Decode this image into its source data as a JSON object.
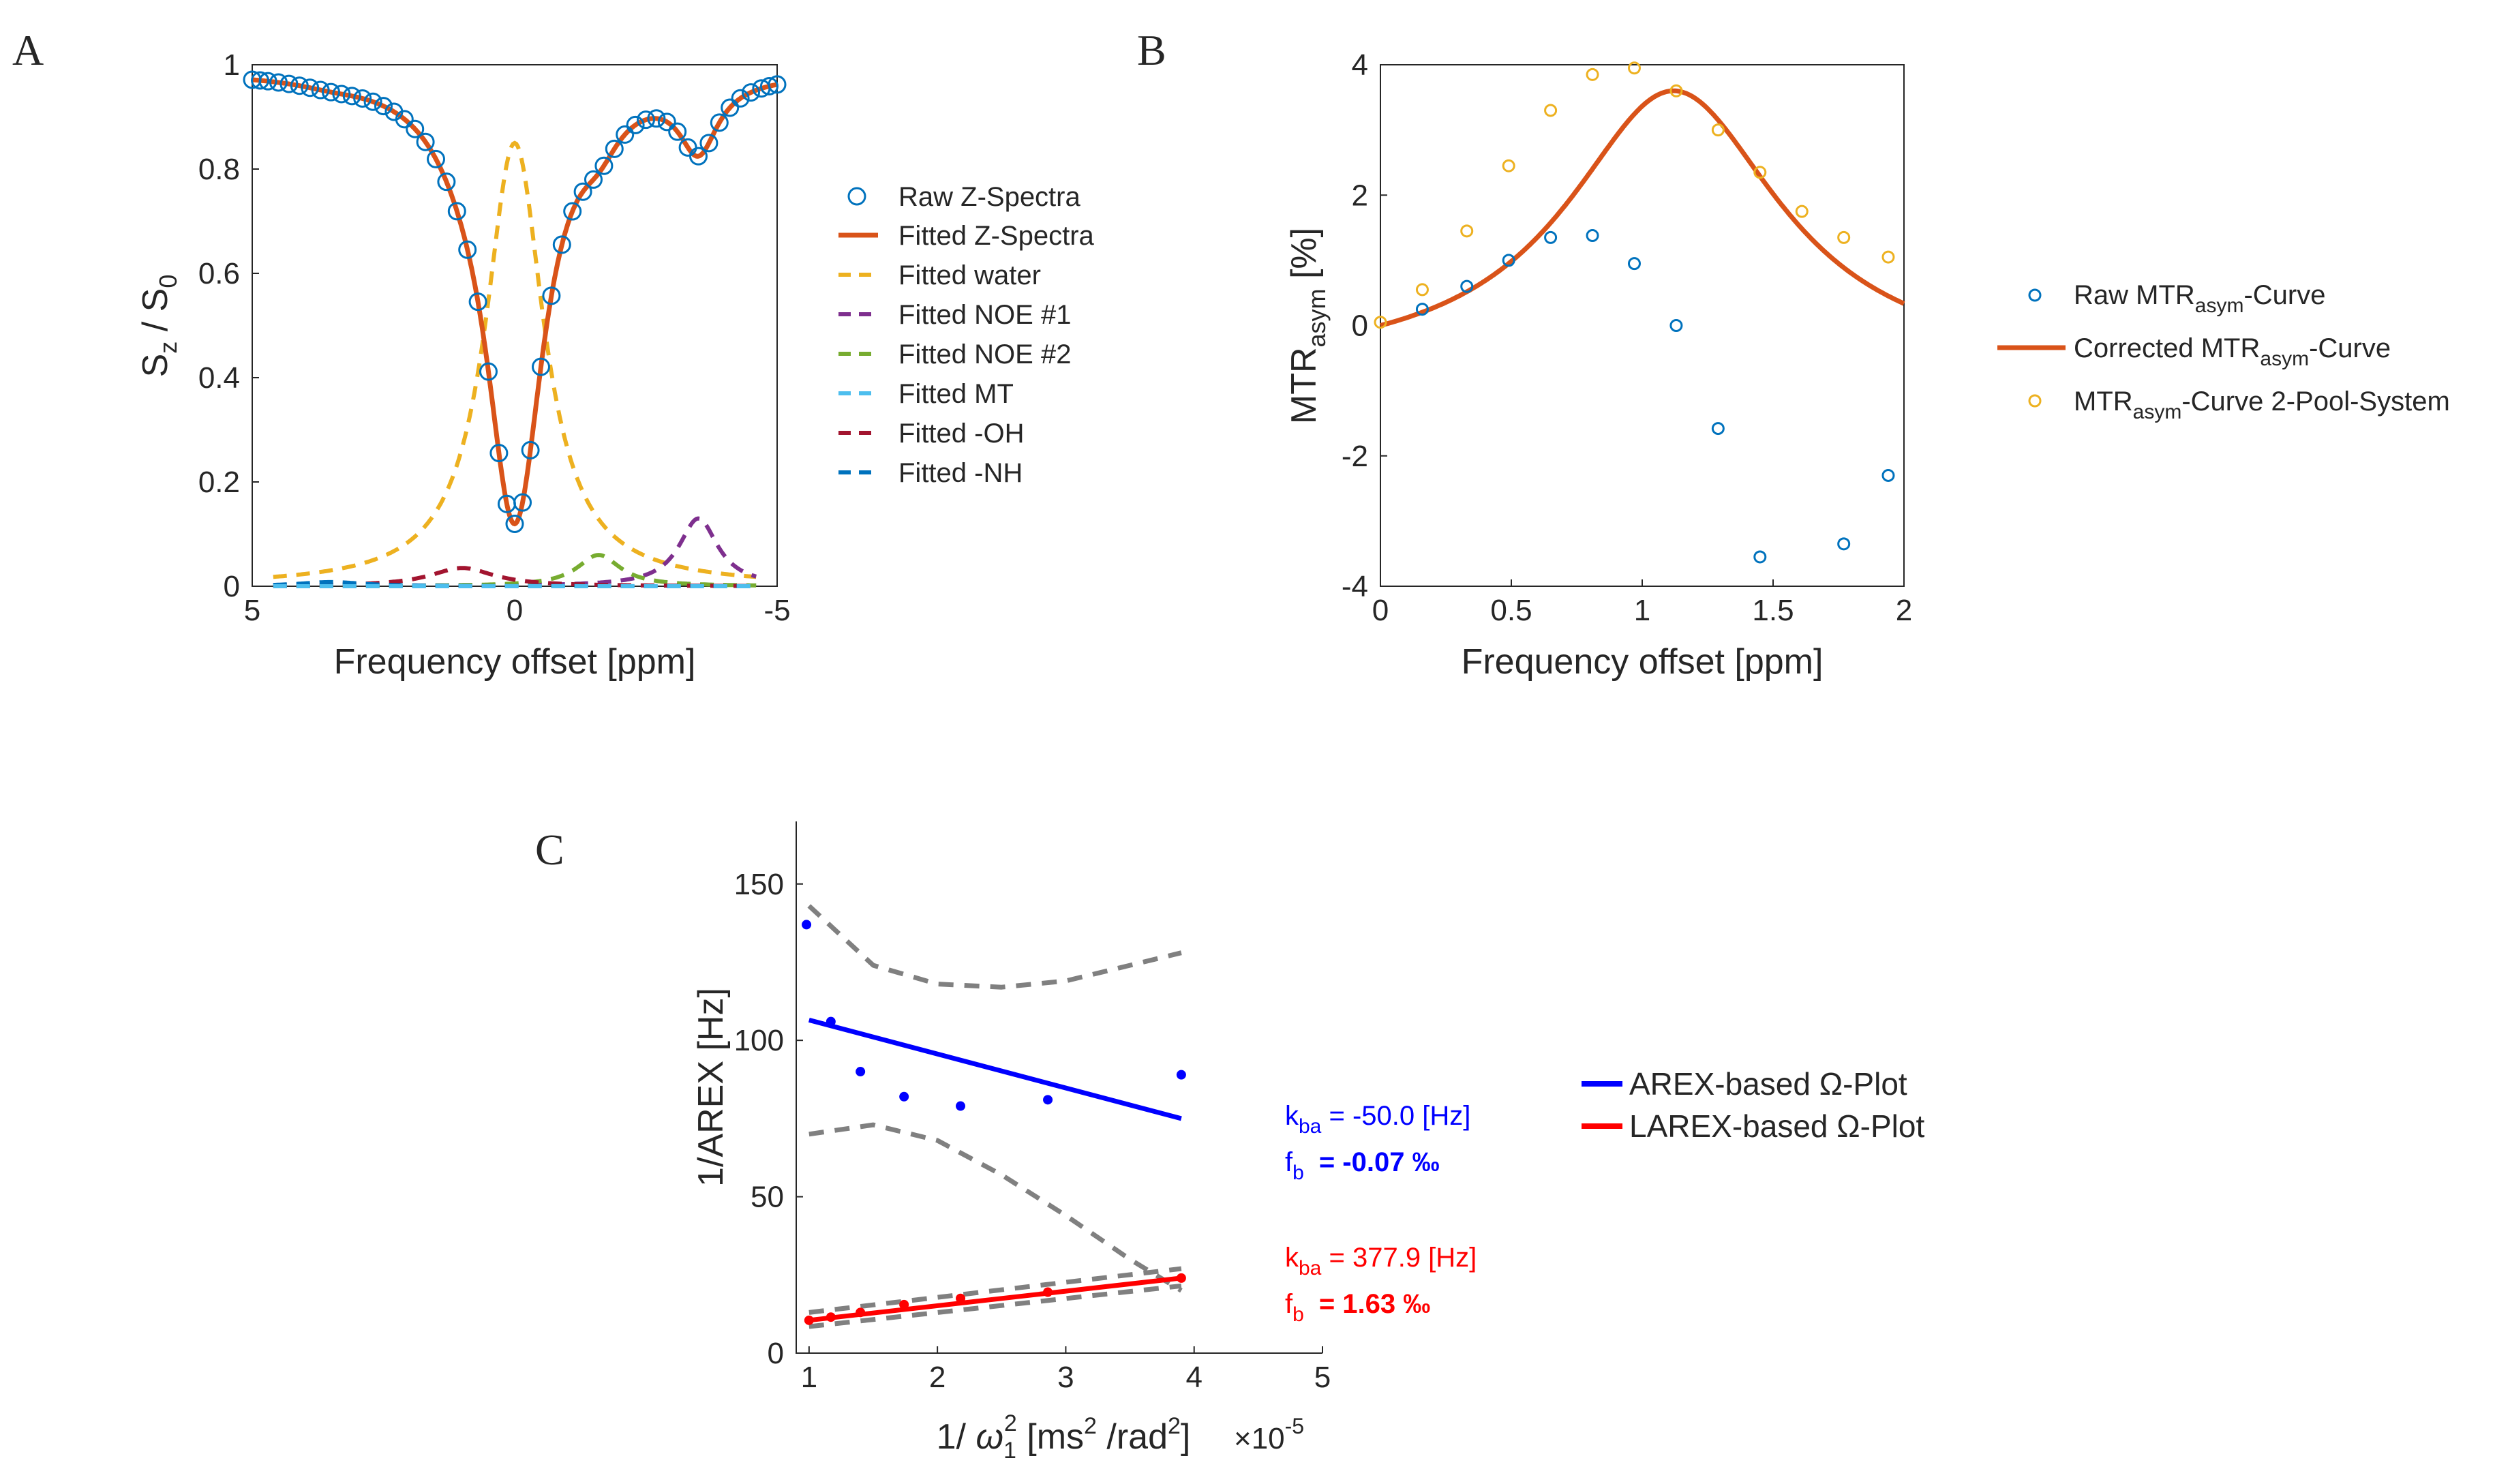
{
  "panels": {
    "A": {
      "label": "A",
      "ylabel": {
        "main": "S",
        "sub": "z",
        "mid": " / S",
        "sub2": "0"
      },
      "xlabel": "Frequency offset [ppm]",
      "xticks": [
        "5",
        "0",
        "-5"
      ],
      "yticks": [
        "0",
        "0.2",
        "0.4",
        "0.6",
        "0.8",
        "1"
      ],
      "legend": [
        {
          "label": "Raw Z-Spectra"
        },
        {
          "label": "Fitted Z-Spectra"
        },
        {
          "label": "Fitted water"
        },
        {
          "label": "Fitted NOE #1"
        },
        {
          "label": "Fitted NOE #2"
        },
        {
          "label": "Fitted MT"
        },
        {
          "label": "Fitted -OH"
        },
        {
          "label": "Fitted -NH"
        }
      ]
    },
    "B": {
      "label": "B",
      "ylabel": {
        "main": "MTR",
        "sub": "asym",
        "post": " [%]"
      },
      "xlabel": "Frequency offset [ppm]",
      "xticks": [
        "0",
        "0.5",
        "1",
        "1.5",
        "2"
      ],
      "yticks": [
        "-4",
        "-2",
        "0",
        "2",
        "4"
      ],
      "legend": [
        {
          "pre": "Raw MTR",
          "sub": "asym",
          "post": "-Curve"
        },
        {
          "pre": "Corrected MTR",
          "sub": "asym",
          "post": "-Curve"
        },
        {
          "pre": "MTR",
          "sub": "asym",
          "post": "-Curve 2-Pool-System"
        }
      ]
    },
    "C": {
      "label": "C",
      "ylabel": "1/AREX [Hz]",
      "xlabel": {
        "pre": "1/ ",
        "omega": "ω",
        "sub": "1",
        "sup": "2",
        "post": " [ms",
        "sup2": "2",
        "post2": " /rad",
        "sup3": "2",
        "post3": "]"
      },
      "exponent": {
        "base": "×10",
        "exp": "-5"
      },
      "xticks": [
        "1",
        "2",
        "3",
        "4",
        "5"
      ],
      "yticks": [
        "0",
        "50",
        "100",
        "150"
      ],
      "legend": [
        {
          "pre": "AREX-based ",
          "omega": "Ω",
          "post": "-Plot"
        },
        {
          "pre": "LAREX-based ",
          "omega": "Ω",
          "post": "-Plot"
        }
      ],
      "annotations": {
        "arex": {
          "k_pre": "k",
          "k_sub": "ba",
          "k_val": " = -50.0  [Hz]",
          "f_pre": "f",
          "f_sub": "b",
          "f_val": "= -0.07 ‰"
        },
        "larex": {
          "k_pre": "k",
          "k_sub": "ba",
          "k_val": " = 377.9  [Hz]",
          "f_pre": "f",
          "f_sub": "b",
          "f_val": "= 1.63 ‰"
        }
      }
    }
  },
  "colors": {
    "raw": "#0072BD",
    "fit": "#D95319",
    "water": "#EDB120",
    "noe1": "#7E2F8E",
    "noe2": "#77AC30",
    "mt": "#4DBEEE",
    "oh": "#A2142F",
    "nh": "#0072BD",
    "orange_pts": "#EDB120",
    "arex": "#0000FF",
    "larex": "#FF0000",
    "ci": "#808080"
  },
  "chart_data": [
    {
      "id": "A",
      "type": "line",
      "title": "",
      "xlabel": "Frequency offset [ppm]",
      "ylabel": "Sz / S0",
      "xlim": [
        5,
        -5
      ],
      "ylim": [
        0,
        1
      ],
      "x_reversed": true,
      "pools": {
        "water": {
          "center": 0,
          "amp": 0.85,
          "width": 1.35
        },
        "noe1": {
          "center": -3.5,
          "amp": 0.13,
          "width": 0.9
        },
        "noe2": {
          "center": -1.6,
          "amp": 0.06,
          "width": 1.0
        },
        "mt": {
          "center": 0,
          "amp": 0.0,
          "width": 10
        },
        "oh": {
          "center": 1.0,
          "amp": 0.035,
          "width": 1.5
        },
        "nh": {
          "center": 3.5,
          "amp": 0.008,
          "width": 1.5
        },
        "baseline": 0.99
      },
      "raw_x": [
        5.0,
        4.85,
        4.7,
        4.5,
        4.3,
        4.1,
        3.9,
        3.7,
        3.5,
        3.3,
        3.1,
        2.9,
        2.7,
        2.5,
        2.3,
        2.1,
        1.9,
        1.7,
        1.5,
        1.3,
        1.1,
        0.9,
        0.7,
        0.5,
        0.3,
        0.15,
        0.0,
        -0.15,
        -0.3,
        -0.5,
        -0.7,
        -0.9,
        -1.1,
        -1.3,
        -1.5,
        -1.7,
        -1.9,
        -2.1,
        -2.3,
        -2.5,
        -2.7,
        -2.9,
        -3.1,
        -3.3,
        -3.5,
        -3.7,
        -3.9,
        -4.1,
        -4.3,
        -4.5,
        -4.7,
        -4.85,
        -5.0
      ],
      "series": [
        {
          "name": "Raw Z-Spectra",
          "style": "circles"
        },
        {
          "name": "Fitted Z-Spectra",
          "style": "solid"
        },
        {
          "name": "Fitted water",
          "style": "dashed"
        },
        {
          "name": "Fitted NOE #1",
          "style": "dashed"
        },
        {
          "name": "Fitted NOE #2",
          "style": "dashed"
        },
        {
          "name": "Fitted MT",
          "style": "dashed"
        },
        {
          "name": "Fitted -OH",
          "style": "dashed"
        },
        {
          "name": "Fitted -NH",
          "style": "dashed"
        }
      ]
    },
    {
      "id": "B",
      "type": "scatter",
      "xlabel": "Frequency offset [ppm]",
      "ylabel": "MTRasym [%]",
      "xlim": [
        0,
        2
      ],
      "ylim": [
        -4,
        4
      ],
      "series": [
        {
          "name": "Raw MTRasym-Curve",
          "x": [
            0.16,
            0.33,
            0.49,
            0.65,
            0.81,
            0.97,
            1.13,
            1.29,
            1.45,
            1.77,
            1.94
          ],
          "y": [
            0.25,
            0.6,
            1.0,
            1.35,
            1.38,
            0.95,
            0.0,
            -1.58,
            -3.55,
            -3.35,
            -2.3
          ]
        },
        {
          "name": "Corrected MTRasym-Curve",
          "peak_x": 1.12,
          "peak_y": 3.6,
          "width": 0.5
        },
        {
          "name": "MTRasym-Curve 2-Pool-System",
          "x": [
            0.0,
            0.16,
            0.33,
            0.49,
            0.65,
            0.81,
            0.97,
            1.13,
            1.29,
            1.45,
            1.61,
            1.77,
            1.94
          ],
          "y": [
            0.05,
            0.55,
            1.45,
            2.45,
            3.3,
            3.85,
            3.95,
            3.6,
            3.0,
            2.35,
            1.75,
            1.35,
            1.05
          ]
        }
      ]
    },
    {
      "id": "C",
      "type": "scatter",
      "xlabel": "1/ω1^2 [ms^2 /rad^2] ×10^-5",
      "ylabel": "1/AREX [Hz]",
      "xlim": [
        1,
        5
      ],
      "ylim": [
        0,
        170
      ],
      "series": [
        {
          "name": "AREX points",
          "x": [
            0.98,
            1.17,
            1.4,
            1.74,
            2.18,
            2.86,
            3.9
          ],
          "y": [
            137,
            106,
            90,
            82,
            79,
            81,
            89
          ]
        },
        {
          "name": "AREX-based Ω-Plot",
          "fit": [
            [
              1.0,
              106.5
            ],
            [
              3.9,
              75
            ]
          ]
        },
        {
          "name": "AREX CI upper",
          "x": [
            1.0,
            1.5,
            2.0,
            2.5,
            3.0,
            3.5,
            3.9
          ],
          "y": [
            143,
            124,
            118,
            117,
            119,
            124,
            128
          ]
        },
        {
          "name": "AREX CI lower",
          "x": [
            1.0,
            1.5,
            2.0,
            2.5,
            3.0,
            3.5,
            3.9
          ],
          "y": [
            70,
            73,
            68,
            57,
            44,
            30,
            20
          ]
        },
        {
          "name": "LAREX points",
          "x": [
            1.0,
            1.17,
            1.4,
            1.74,
            2.18,
            2.86,
            3.9
          ],
          "y": [
            10.5,
            11.5,
            13,
            15.5,
            17.5,
            19.5,
            24
          ]
        },
        {
          "name": "LAREX-based Ω-Plot",
          "fit": [
            [
              1.0,
              10.5
            ],
            [
              3.9,
              24
            ]
          ]
        },
        {
          "name": "LAREX CI upper",
          "fit": [
            [
              1.0,
              13
            ],
            [
              3.9,
              27
            ]
          ]
        },
        {
          "name": "LAREX CI lower",
          "fit": [
            [
              1.0,
              8.5
            ],
            [
              3.9,
              21.5
            ]
          ]
        }
      ]
    }
  ]
}
